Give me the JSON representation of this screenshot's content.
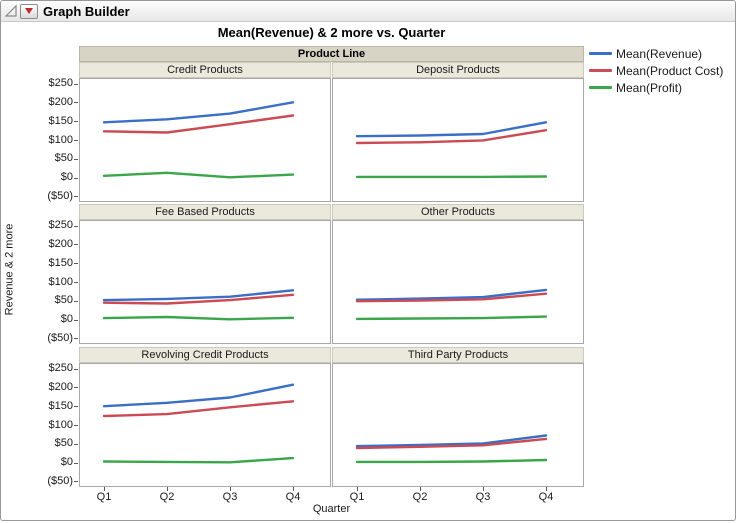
{
  "window": {
    "title": "Graph Builder"
  },
  "report_title": "Mean(Revenue) & 2 more vs. Quarter",
  "icons": {
    "disclosure": "open-outline-triangle",
    "menu_button": "red-triangle-down"
  },
  "colors": {
    "revenue": "#3b6fc7",
    "product_cost": "#cb4a54",
    "profit": "#3aa64a",
    "facet_strip_bg": "#d7d3c5",
    "panel_label_bg": "#ebe8dc",
    "panel_border": "#a8a8a8"
  },
  "chart_data": {
    "type": "line",
    "title": "Mean(Revenue) & 2 more vs. Quarter",
    "facet_by": "Product Line",
    "x": [
      "Q1",
      "Q2",
      "Q3",
      "Q4"
    ],
    "xlabel": "Quarter",
    "ylabel": "Revenue & 2 more",
    "ylim": [
      -62,
      262
    ],
    "grid": false,
    "legend_position": "top-right",
    "y_ticks": [
      {
        "label": "$250",
        "value": 250
      },
      {
        "label": "$200",
        "value": 200
      },
      {
        "label": "$150",
        "value": 150
      },
      {
        "label": "$100",
        "value": 100
      },
      {
        "label": "$50",
        "value": 50
      },
      {
        "label": "$0",
        "value": 0
      },
      {
        "label": "($50)",
        "value": -50
      }
    ],
    "series": [
      {
        "name": "Mean(Revenue)",
        "color": "#3b6fc7"
      },
      {
        "name": "Mean(Product Cost)",
        "color": "#cb4a54"
      },
      {
        "name": "Mean(Profit)",
        "color": "#3aa64a"
      }
    ],
    "panels": [
      {
        "name": "Credit Products",
        "series_values": [
          [
            147,
            155,
            170,
            200
          ],
          [
            123,
            120,
            142,
            165
          ],
          [
            5,
            13,
            1,
            8
          ]
        ]
      },
      {
        "name": "Deposit Products",
        "series_values": [
          [
            110,
            112,
            116,
            147
          ],
          [
            92,
            94,
            99,
            126
          ],
          [
            2,
            2,
            2,
            3
          ]
        ]
      },
      {
        "name": "Fee Based Products",
        "series_values": [
          [
            52,
            55,
            61,
            78
          ],
          [
            45,
            43,
            52,
            66
          ],
          [
            4,
            7,
            1,
            5
          ]
        ]
      },
      {
        "name": "Other Products",
        "series_values": [
          [
            53,
            56,
            60,
            79
          ],
          [
            49,
            51,
            54,
            69
          ],
          [
            2,
            3,
            4,
            8
          ]
        ]
      },
      {
        "name": "Revolving Credit Products",
        "series_values": [
          [
            150,
            159,
            173,
            207
          ],
          [
            124,
            129,
            147,
            163
          ],
          [
            3,
            2,
            1,
            12
          ]
        ]
      },
      {
        "name": "Third Party Products",
        "series_values": [
          [
            44,
            47,
            51,
            72
          ],
          [
            39,
            42,
            46,
            63
          ],
          [
            2,
            2,
            3,
            7
          ]
        ]
      }
    ]
  }
}
